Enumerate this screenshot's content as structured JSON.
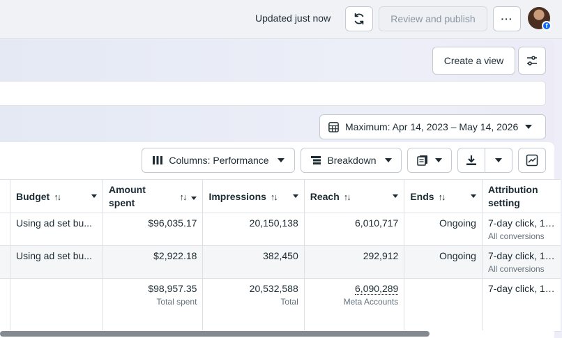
{
  "header": {
    "status": "Updated just now",
    "review_label": "Review and publish",
    "more_label": "···"
  },
  "views": {
    "create_label": "Create a view"
  },
  "date_range": {
    "label": "Maximum: Apr 14, 2023 – May 14, 2026"
  },
  "toolbar": {
    "columns_label": "Columns: Performance",
    "breakdown_label": "Breakdown"
  },
  "table": {
    "columns": {
      "budget": "Budget",
      "amount_line1": "Amount",
      "amount_line2": "spent",
      "impressions": "Impressions",
      "reach": "Reach",
      "ends": "Ends",
      "attr_line1": "Attribution",
      "attr_line2": "setting"
    },
    "rows": [
      {
        "budget": "Using ad set bu...",
        "amount": "$96,035.17",
        "impressions": "20,150,138",
        "reach": "6,010,717",
        "ends": "Ongoing",
        "attribution": "7-day click, 1-...",
        "attribution_sub": "All conversions"
      },
      {
        "budget": "Using ad set bu...",
        "amount": "$2,922.18",
        "impressions": "382,450",
        "reach": "292,912",
        "ends": "Ongoing",
        "attribution": "7-day click, 1-...",
        "attribution_sub": "All conversions"
      }
    ],
    "totals": {
      "amount": "$98,957.35",
      "amount_sub": "Total spent",
      "impressions": "20,532,588",
      "impressions_sub": "Total",
      "reach": "6,090,289",
      "reach_sub": "Meta Accounts",
      "attribution": "7-day click, 1-..."
    }
  },
  "colors": {
    "accent": "#0866ff",
    "border": "#dde1e7",
    "scrollbar": "#858a90"
  }
}
